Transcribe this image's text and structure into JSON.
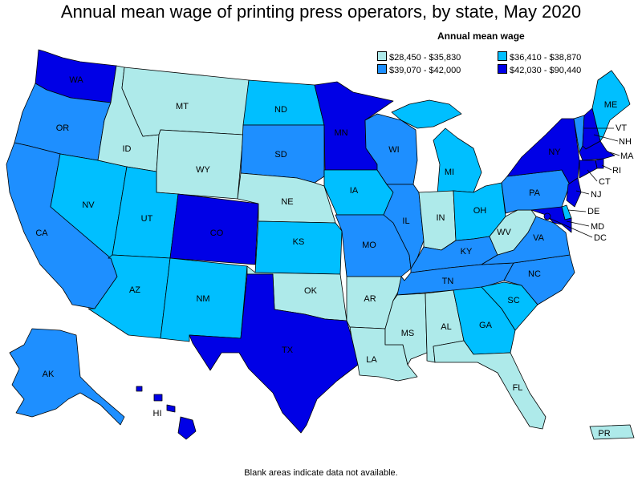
{
  "title": "Annual mean wage of printing press operators, by state, May 2020",
  "legend": {
    "title": "Annual mean wage",
    "items": [
      {
        "label": "$28,450 - $35,830",
        "color": "#aeeaea"
      },
      {
        "label": "$36,410 - $38,870",
        "color": "#00bfff"
      },
      {
        "label": "$39,070 - $42,000",
        "color": "#1e8fff"
      },
      {
        "label": "$42,030 - $90,440",
        "color": "#0000e6"
      }
    ]
  },
  "footnote": "Blank areas indicate data not available.",
  "states": {
    "WA": {
      "label": "WA",
      "tier": 3
    },
    "OR": {
      "label": "OR",
      "tier": 2
    },
    "CA": {
      "label": "CA",
      "tier": 2
    },
    "NV": {
      "label": "NV",
      "tier": 1
    },
    "ID": {
      "label": "ID",
      "tier": 0
    },
    "MT": {
      "label": "MT",
      "tier": 0
    },
    "WY": {
      "label": "WY",
      "tier": 0
    },
    "UT": {
      "label": "UT",
      "tier": 1
    },
    "AZ": {
      "label": "AZ",
      "tier": 1
    },
    "CO": {
      "label": "CO",
      "tier": 3
    },
    "NM": {
      "label": "NM",
      "tier": 1
    },
    "ND": {
      "label": "ND",
      "tier": 1
    },
    "SD": {
      "label": "SD",
      "tier": 2
    },
    "NE": {
      "label": "NE",
      "tier": 0
    },
    "KS": {
      "label": "KS",
      "tier": 1
    },
    "OK": {
      "label": "OK",
      "tier": 0
    },
    "TX": {
      "label": "TX",
      "tier": 3
    },
    "MN": {
      "label": "MN",
      "tier": 3
    },
    "IA": {
      "label": "IA",
      "tier": 1
    },
    "MO": {
      "label": "MO",
      "tier": 2
    },
    "AR": {
      "label": "AR",
      "tier": 0
    },
    "LA": {
      "label": "LA",
      "tier": 0
    },
    "WI": {
      "label": "WI",
      "tier": 2
    },
    "IL": {
      "label": "IL",
      "tier": 2
    },
    "MI": {
      "label": "MI",
      "tier": 1
    },
    "IN": {
      "label": "IN",
      "tier": 0
    },
    "OH": {
      "label": "OH",
      "tier": 1
    },
    "KY": {
      "label": "KY",
      "tier": 2
    },
    "TN": {
      "label": "TN",
      "tier": 2
    },
    "MS": {
      "label": "MS",
      "tier": 0
    },
    "AL": {
      "label": "AL",
      "tier": 0
    },
    "GA": {
      "label": "GA",
      "tier": 1
    },
    "FL": {
      "label": "FL",
      "tier": 0
    },
    "SC": {
      "label": "SC",
      "tier": 1
    },
    "NC": {
      "label": "NC",
      "tier": 2
    },
    "VA": {
      "label": "VA",
      "tier": 2
    },
    "WV": {
      "label": "WV",
      "tier": 0
    },
    "PA": {
      "label": "PA",
      "tier": 2
    },
    "NY": {
      "label": "NY",
      "tier": 3
    },
    "VT": {
      "label": "VT",
      "tier": 2
    },
    "NH": {
      "label": "NH",
      "tier": 3
    },
    "ME": {
      "label": "ME",
      "tier": 1
    },
    "MA": {
      "label": "MA",
      "tier": 3
    },
    "RI": {
      "label": "RI",
      "tier": 3
    },
    "CT": {
      "label": "CT",
      "tier": 3
    },
    "NJ": {
      "label": "NJ",
      "tier": 3
    },
    "DE": {
      "label": "DE",
      "tier": 1
    },
    "MD": {
      "label": "MD",
      "tier": 3
    },
    "DC": {
      "label": "DC",
      "tier": 3
    },
    "AK": {
      "label": "AK",
      "tier": 2
    },
    "HI": {
      "label": "HI",
      "tier": 3
    },
    "PR": {
      "label": "PR",
      "tier": 0
    }
  }
}
